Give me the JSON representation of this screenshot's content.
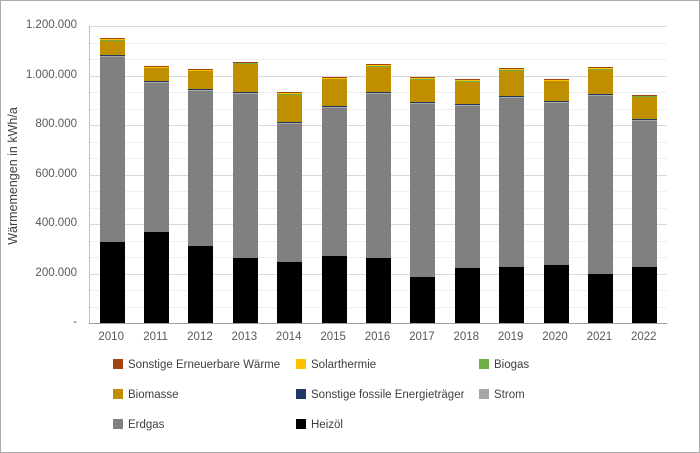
{
  "chart_data": {
    "type": "bar",
    "stacked": true,
    "title": "",
    "xlabel": "",
    "ylabel": "Wärmemengen in kWh/a",
    "ylim": [
      0,
      1200000
    ],
    "y_major_unit": 200000,
    "y_minor_divisions_per_major": 3,
    "y_tick_labels": [
      "-",
      "200.000",
      "400.000",
      "600.000",
      "800.000",
      "1.000.000",
      "1.200.000"
    ],
    "grid": "horizontal-major-and-minor",
    "legend_position": "bottom",
    "legend_columns": 3,
    "legend_order": [
      "Sonstige Erneuerbare Wärme",
      "Solarthermie",
      "Biogas",
      "Biomasse",
      "Sonstige fossile Energieträger",
      "Strom",
      "Erdgas",
      "Heizöl"
    ],
    "categories": [
      "2010",
      "2011",
      "2012",
      "2013",
      "2014",
      "2015",
      "2016",
      "2017",
      "2018",
      "2019",
      "2020",
      "2021",
      "2022"
    ],
    "series": [
      {
        "name": "Heizöl",
        "color": "#000000",
        "values": [
          327000,
          369000,
          313000,
          264000,
          248000,
          269000,
          264000,
          187000,
          221000,
          226000,
          233000,
          199000,
          227000
        ]
      },
      {
        "name": "Erdgas",
        "color": "#808080",
        "values": [
          748000,
          602000,
          625000,
          664000,
          557000,
          601000,
          664000,
          699000,
          656000,
          684000,
          657000,
          720000,
          589000
        ]
      },
      {
        "name": "Strom",
        "color": "#A6A6A6",
        "values": [
          3000,
          3000,
          3000,
          3000,
          3000,
          3000,
          3000,
          3000,
          3000,
          3000,
          3000,
          3000,
          3000
        ]
      },
      {
        "name": "Sonstige fossile Energieträger",
        "color": "#203864",
        "values": [
          4000,
          4000,
          4000,
          4000,
          4000,
          4000,
          4000,
          4000,
          4000,
          4000,
          4000,
          4000,
          4000
        ]
      },
      {
        "name": "Biomasse",
        "color": "#BF8F00",
        "values": [
          60000,
          52000,
          73000,
          112000,
          112000,
          108000,
          100000,
          90000,
          92000,
          103000,
          79000,
          98000,
          90000
        ]
      },
      {
        "name": "Biogas",
        "color": "#70AD47",
        "values": [
          2000,
          2000,
          3000,
          3000,
          2000,
          3000,
          4000,
          3000,
          3000,
          4000,
          4000,
          3000,
          4000
        ]
      },
      {
        "name": "Solarthermie",
        "color": "#FFC000",
        "values": [
          2000,
          2000,
          2000,
          3000,
          3000,
          3000,
          3000,
          3000,
          3000,
          3000,
          3000,
          3000,
          3000
        ]
      },
      {
        "name": "Sonstige Erneuerbare Wärme",
        "color": "#A3440F",
        "values": [
          4000,
          2000,
          2000,
          2000,
          4000,
          3000,
          3000,
          2000,
          2000,
          2000,
          3000,
          2000,
          2000
        ]
      }
    ]
  }
}
